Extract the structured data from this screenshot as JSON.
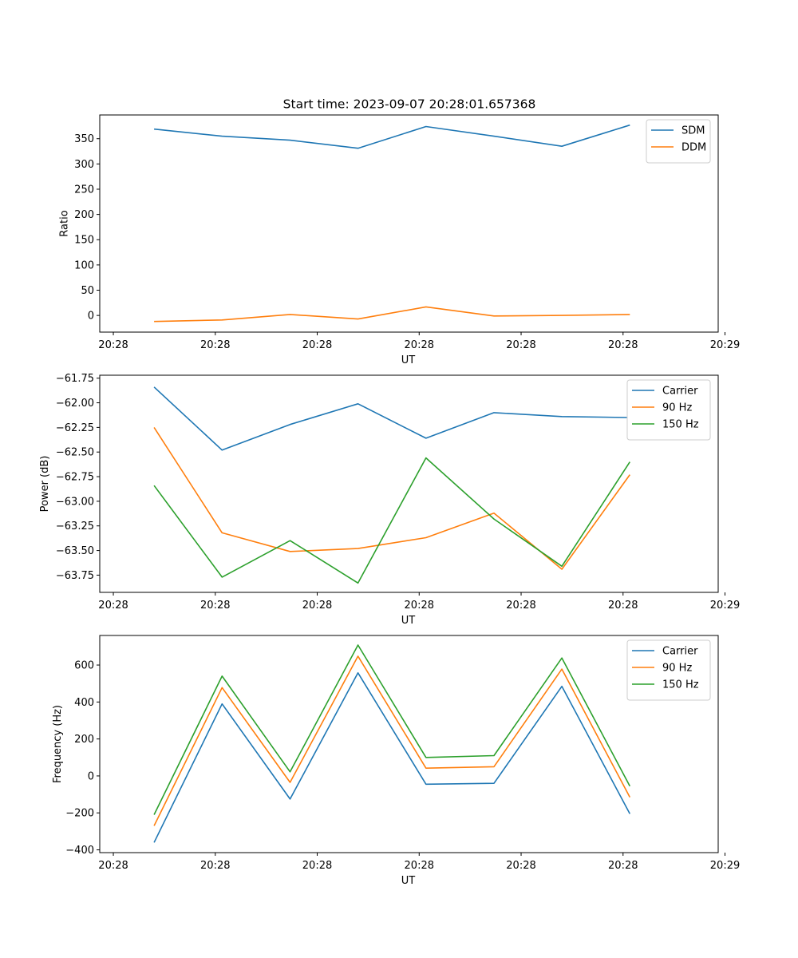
{
  "figure_title": "Start time: 2023-09-07 20:28:01.657368",
  "colors": {
    "blue": "#1f77b4",
    "orange": "#ff7f0e",
    "green": "#2ca02c"
  },
  "chart_data": [
    {
      "type": "line",
      "title": "Start time: 2023-09-07 20:28:01.657368",
      "xlabel": "UT",
      "ylabel": "Ratio",
      "x": [
        1,
        2,
        3,
        4,
        5,
        6,
        7,
        8
      ],
      "xlim": [
        0.2,
        9.3
      ],
      "xticks": [
        0.4,
        1.9,
        3.4,
        4.9,
        6.4,
        7.9,
        9.4
      ],
      "xtick_labels": [
        "20:28",
        "20:28",
        "20:28",
        "20:28",
        "20:28",
        "20:28",
        "20:29"
      ],
      "ylim": [
        -33,
        397
      ],
      "yticks": [
        0,
        50,
        100,
        150,
        200,
        250,
        300,
        350
      ],
      "ytick_labels": [
        "0",
        "50",
        "100",
        "150",
        "200",
        "250",
        "300",
        "350"
      ],
      "legend": "top-right",
      "series": [
        {
          "name": "SDM",
          "color": "#1f77b4",
          "values": [
            369,
            355,
            347,
            331,
            374,
            355,
            335,
            377
          ]
        },
        {
          "name": "DDM",
          "color": "#ff7f0e",
          "values": [
            -12,
            -9,
            2,
            -7,
            17,
            -1,
            0,
            2
          ]
        }
      ]
    },
    {
      "type": "line",
      "title": "",
      "xlabel": "UT",
      "ylabel": "Power (dB)",
      "x": [
        1,
        2,
        3,
        4,
        5,
        6,
        7,
        8
      ],
      "xlim": [
        0.2,
        9.3
      ],
      "xticks": [
        0.4,
        1.9,
        3.4,
        4.9,
        6.4,
        7.9,
        9.4
      ],
      "xtick_labels": [
        "20:28",
        "20:28",
        "20:28",
        "20:28",
        "20:28",
        "20:28",
        "20:29"
      ],
      "ylim": [
        -63.925,
        -61.72
      ],
      "yticks": [
        -63.75,
        -63.5,
        -63.25,
        -63.0,
        -62.75,
        -62.5,
        -62.25,
        -62.0,
        -61.75
      ],
      "ytick_labels": [
        "−63.75",
        "−63.50",
        "−63.25",
        "−63.00",
        "−62.75",
        "−62.50",
        "−62.25",
        "−62.00",
        "−61.75"
      ],
      "legend": "top-right",
      "series": [
        {
          "name": "Carrier",
          "color": "#1f77b4",
          "values": [
            -61.84,
            -62.48,
            -62.22,
            -62.01,
            -62.36,
            -62.1,
            -62.14,
            -62.15
          ]
        },
        {
          "name": "90 Hz",
          "color": "#ff7f0e",
          "values": [
            -62.25,
            -63.32,
            -63.51,
            -63.48,
            -63.37,
            -63.12,
            -63.69,
            -62.73
          ]
        },
        {
          "name": "150 Hz",
          "color": "#2ca02c",
          "values": [
            -62.84,
            -63.77,
            -63.4,
            -63.83,
            -62.56,
            -63.18,
            -63.66,
            -62.6
          ]
        }
      ]
    },
    {
      "type": "line",
      "title": "",
      "xlabel": "UT",
      "ylabel": "Frequency (Hz)",
      "x": [
        1,
        2,
        3,
        4,
        5,
        6,
        7,
        8
      ],
      "xlim": [
        0.2,
        9.3
      ],
      "xticks": [
        0.4,
        1.9,
        3.4,
        4.9,
        6.4,
        7.9,
        9.4
      ],
      "xtick_labels": [
        "20:28",
        "20:28",
        "20:28",
        "20:28",
        "20:28",
        "20:28",
        "20:29"
      ],
      "ylim": [
        -415,
        760
      ],
      "yticks": [
        -400,
        -200,
        0,
        200,
        400,
        600
      ],
      "ytick_labels": [
        "−400",
        "−200",
        "0",
        "200",
        "400",
        "600"
      ],
      "legend": "top-right",
      "series": [
        {
          "name": "Carrier",
          "color": "#1f77b4",
          "values": [
            -360,
            390,
            -125,
            558,
            -45,
            -40,
            485,
            -205
          ]
        },
        {
          "name": "90 Hz",
          "color": "#ff7f0e",
          "values": [
            -270,
            478,
            -35,
            648,
            42,
            50,
            578,
            -115
          ]
        },
        {
          "name": "150 Hz",
          "color": "#2ca02c",
          "values": [
            -210,
            540,
            22,
            708,
            100,
            110,
            638,
            -55
          ]
        }
      ]
    }
  ]
}
